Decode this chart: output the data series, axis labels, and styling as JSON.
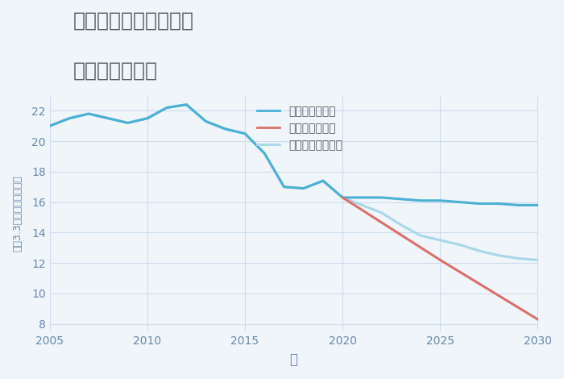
{
  "title_line1": "愛知県常滑市森西町の",
  "title_line2": "土地の価格推移",
  "xlabel": "年",
  "ylabel": "坪（3.3㎡）単価（万円）",
  "xlim": [
    2005,
    2030
  ],
  "ylim": [
    7.5,
    23
  ],
  "yticks": [
    8,
    10,
    12,
    14,
    16,
    18,
    20,
    22
  ],
  "xticks": [
    2005,
    2010,
    2015,
    2020,
    2025,
    2030
  ],
  "background_color": "#f0f5fa",
  "plot_bg_color": "#f0f5fa",
  "good_scenario": {
    "label": "グッドシナリオ",
    "color": "#4ab0d4",
    "linewidth": 2.2,
    "x": [
      2005,
      2006,
      2007,
      2008,
      2009,
      2010,
      2011,
      2012,
      2013,
      2014,
      2015,
      2016,
      2017,
      2018,
      2019,
      2020,
      2021,
      2022,
      2023,
      2024,
      2025,
      2026,
      2027,
      2028,
      2029,
      2030
    ],
    "y": [
      21.0,
      21.5,
      21.8,
      21.5,
      21.2,
      21.5,
      22.2,
      22.4,
      21.3,
      20.8,
      20.5,
      19.2,
      17.0,
      16.9,
      17.4,
      16.3,
      16.3,
      16.3,
      16.2,
      16.1,
      16.1,
      16.0,
      15.9,
      15.9,
      15.8,
      15.8
    ]
  },
  "bad_scenario": {
    "label": "バッドシナリオ",
    "color": "#d9706a",
    "linewidth": 2.2,
    "x": [
      2020,
      2025,
      2030
    ],
    "y": [
      16.3,
      12.2,
      8.3
    ]
  },
  "normal_scenario": {
    "label": "ノーマルシナリオ",
    "color": "#a8d8e8",
    "linewidth": 2.2,
    "x": [
      2005,
      2006,
      2007,
      2008,
      2009,
      2010,
      2011,
      2012,
      2013,
      2014,
      2015,
      2016,
      2017,
      2018,
      2019,
      2020,
      2021,
      2022,
      2023,
      2024,
      2025,
      2026,
      2027,
      2028,
      2029,
      2030
    ],
    "y": [
      21.0,
      21.5,
      21.8,
      21.5,
      21.2,
      21.5,
      22.2,
      22.4,
      21.3,
      20.8,
      20.5,
      19.2,
      17.0,
      16.9,
      17.4,
      16.3,
      15.8,
      15.3,
      14.5,
      13.8,
      13.5,
      13.2,
      12.8,
      12.5,
      12.3,
      12.2
    ]
  },
  "title_color": "#555a60",
  "title_fontsize": 18,
  "axis_label_color": "#6688aa",
  "tick_color": "#6688aa",
  "grid_color": "#ccdded",
  "legend_fontsize": 10
}
